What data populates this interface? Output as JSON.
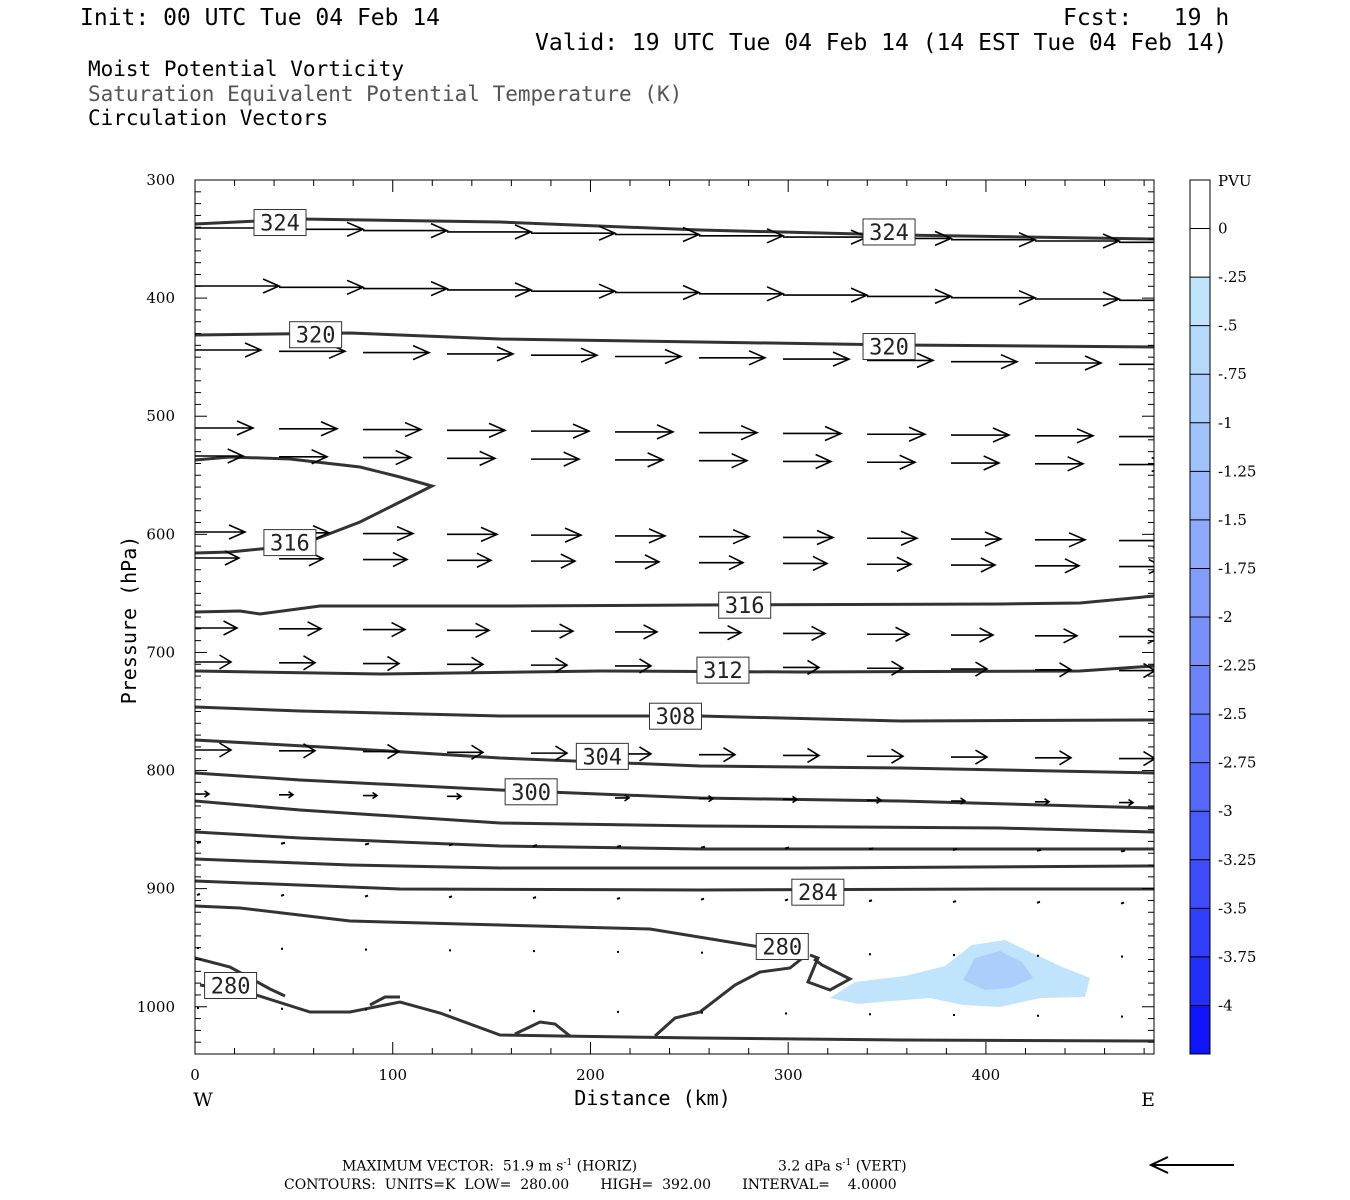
{
  "header": {
    "init": "Init: 00 UTC Tue 04 Feb 14",
    "fcst": "Fcst:   19 h",
    "valid": "Valid: 19 UTC Tue 04 Feb 14 (14 EST Tue 04 Feb 14)",
    "field1": "Moist Potential Vorticity",
    "field2": "Saturation Equivalent Potential Temperature (K)",
    "field3": "Circulation Vectors"
  },
  "footer": {
    "max_label": "MAXIMUM VECTOR:",
    "max_horiz": "51.9 m s",
    "horiz_sup": "-1",
    "horiz_tag": "(HORIZ)",
    "max_vert": "3.2 dPa s",
    "vert_sup": "-1",
    "vert_tag": "(VERT)",
    "contours": "CONTOURS:  UNITS=K  LOW=  280.00       HIGH=  392.00       INTERVAL=    4.0000"
  },
  "chart_data": {
    "type": "line",
    "xlabel": "Distance (km)",
    "ylabel": "Pressure (hPa)",
    "x_ticks": [
      0,
      100,
      200,
      300,
      400
    ],
    "y_ticks": [
      300,
      400,
      500,
      600,
      700,
      800,
      900,
      1000
    ],
    "xlim": [
      0,
      485
    ],
    "ylim": [
      300,
      1040
    ],
    "y_inverted": true,
    "x_end_labels": {
      "left": "W",
      "right": "E"
    },
    "contour_labels": [
      {
        "text": "324",
        "x": 43,
        "y": 336
      },
      {
        "text": "324",
        "x": 351,
        "y": 344
      },
      {
        "text": "320",
        "x": 61,
        "y": 431
      },
      {
        "text": "320",
        "x": 351,
        "y": 441
      },
      {
        "text": "316",
        "x": 48,
        "y": 607
      },
      {
        "text": "316",
        "x": 278,
        "y": 660
      },
      {
        "text": "312",
        "x": 267,
        "y": 715
      },
      {
        "text": "308",
        "x": 243,
        "y": 754
      },
      {
        "text": "304",
        "x": 206,
        "y": 788
      },
      {
        "text": "300",
        "x": 170,
        "y": 818
      },
      {
        "text": "284",
        "x": 315,
        "y": 903
      },
      {
        "text": "280",
        "x": 297,
        "y": 949
      },
      {
        "text": "280",
        "x": 18,
        "y": 982
      }
    ],
    "colorbar": {
      "title": "PVU",
      "labels": [
        "0",
        "-.25",
        "-.5",
        "-.75",
        "-1",
        "-1.25",
        "-1.5",
        "-1.75",
        "-2",
        "-2.25",
        "-2.5",
        "-2.75",
        "-3",
        "-3.25",
        "-3.5",
        "-3.75",
        "-4"
      ],
      "colors": [
        "#ffffff",
        "#ffffff",
        "#bfe4fb",
        "#b5d9fb",
        "#abcefb",
        "#a1c3fb",
        "#97b6fb",
        "#8ca9fb",
        "#829cfb",
        "#778ffb",
        "#6c82fb",
        "#6175fb",
        "#5668fb",
        "#4a5bfb",
        "#3e4cfb",
        "#313efb",
        "#222ffb",
        "#0f14fb"
      ]
    }
  }
}
